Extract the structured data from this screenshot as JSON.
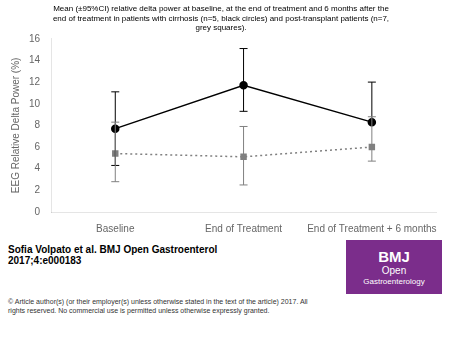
{
  "chart_data": {
    "type": "line",
    "title": "Mean (±95%CI) relative delta power at baseline, at the end of treatment and 6 months after the\nend of treatment in patients with cirrhosis (n=5, black circles) and post-transplant patients (n=7,\ngrey squares).",
    "categories": [
      "Baseline",
      "End of Treatment",
      "End of Treatment + 6 months"
    ],
    "ylabel": "EEG Relative Delta Power (%)",
    "ylim": [
      0,
      16
    ],
    "yticks": [
      0,
      2,
      4,
      6,
      8,
      10,
      12,
      14,
      16
    ],
    "grid": false,
    "series": [
      {
        "color": "black",
        "marker": "circle",
        "line_style": "solid",
        "values": [
          7.7,
          11.7,
          8.3
        ],
        "ci_lower": [
          4.3,
          9.3,
          8.3
        ],
        "ci_upper": [
          11.1,
          15.1,
          12.0
        ]
      },
      {
        "color": "grey",
        "marker": "square",
        "line_style": "dotted",
        "values": [
          5.4,
          5.1,
          6.0
        ],
        "ci_lower": [
          2.8,
          2.5,
          4.7
        ],
        "ci_upper": [
          8.3,
          7.9,
          8.8
        ]
      }
    ],
    "annotations": [
      {
        "text": "Sofia Volpato et al. BMJ Open Gastroenterol\n2017;4:e000183"
      },
      {
        "text": "© Article author(s) (or their employer(s) unless otherwise stated in the text of the article) 2017. All\nrights reserved. No commercial use is permitted unless otherwise expressly granted."
      },
      {
        "text": "BMJ\nOpen\nGastroenterology",
        "color": "#7B2D8B"
      }
    ]
  }
}
